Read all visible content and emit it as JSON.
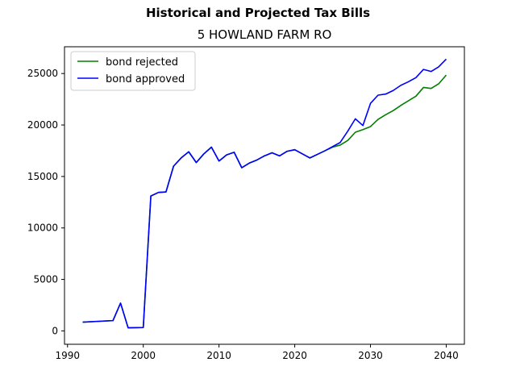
{
  "chart_data": {
    "type": "line",
    "suptitle": "Historical and Projected Tax Bills",
    "title": "5 HOWLAND FARM RO",
    "xlabel": "",
    "ylabel": "",
    "xlim": [
      1989.6,
      2042.4
    ],
    "ylim": [
      -1300,
      27600
    ],
    "xticks": [
      1990,
      2000,
      2010,
      2020,
      2030,
      2040
    ],
    "yticks": [
      0,
      5000,
      10000,
      15000,
      20000,
      25000
    ],
    "grid": false,
    "legend_position": "top-left",
    "series": [
      {
        "name": "bond rejected",
        "color": "#008000",
        "x": [
          1992,
          1996,
          1997,
          1998,
          2000,
          2001,
          2002,
          2003,
          2004,
          2005,
          2006,
          2007,
          2008,
          2009,
          2010,
          2011,
          2012,
          2013,
          2014,
          2015,
          2016,
          2017,
          2018,
          2019,
          2020,
          2021,
          2022,
          2023,
          2024,
          2025,
          2026,
          2027,
          2028,
          2029,
          2030,
          2031,
          2032,
          2033,
          2034,
          2035,
          2036,
          2037,
          2038,
          2039,
          2040
        ],
        "y": [
          850,
          1000,
          2700,
          300,
          330,
          13100,
          13450,
          13500,
          16000,
          16800,
          17400,
          16350,
          17200,
          17850,
          16500,
          17100,
          17350,
          15850,
          16300,
          16600,
          17000,
          17300,
          17000,
          17450,
          17600,
          17200,
          16800,
          17150,
          17500,
          17850,
          18050,
          18500,
          19300,
          19550,
          19850,
          20550,
          21000,
          21400,
          21900,
          22350,
          22800,
          23650,
          23550,
          24000,
          24850
        ]
      },
      {
        "name": "bond approved",
        "color": "#0000ff",
        "x": [
          1992,
          1996,
          1997,
          1998,
          2000,
          2001,
          2002,
          2003,
          2004,
          2005,
          2006,
          2007,
          2008,
          2009,
          2010,
          2011,
          2012,
          2013,
          2014,
          2015,
          2016,
          2017,
          2018,
          2019,
          2020,
          2021,
          2022,
          2023,
          2024,
          2025,
          2026,
          2027,
          2028,
          2029,
          2030,
          2031,
          2032,
          2033,
          2034,
          2035,
          2036,
          2037,
          2038,
          2039,
          2040
        ],
        "y": [
          850,
          1000,
          2700,
          300,
          330,
          13100,
          13450,
          13500,
          16000,
          16800,
          17400,
          16350,
          17200,
          17850,
          16500,
          17100,
          17350,
          15850,
          16300,
          16600,
          17000,
          17300,
          17000,
          17450,
          17600,
          17200,
          16800,
          17150,
          17500,
          17900,
          18300,
          19400,
          20600,
          19950,
          22100,
          22900,
          23000,
          23350,
          23850,
          24200,
          24600,
          25400,
          25200,
          25650,
          26400
        ]
      }
    ]
  }
}
